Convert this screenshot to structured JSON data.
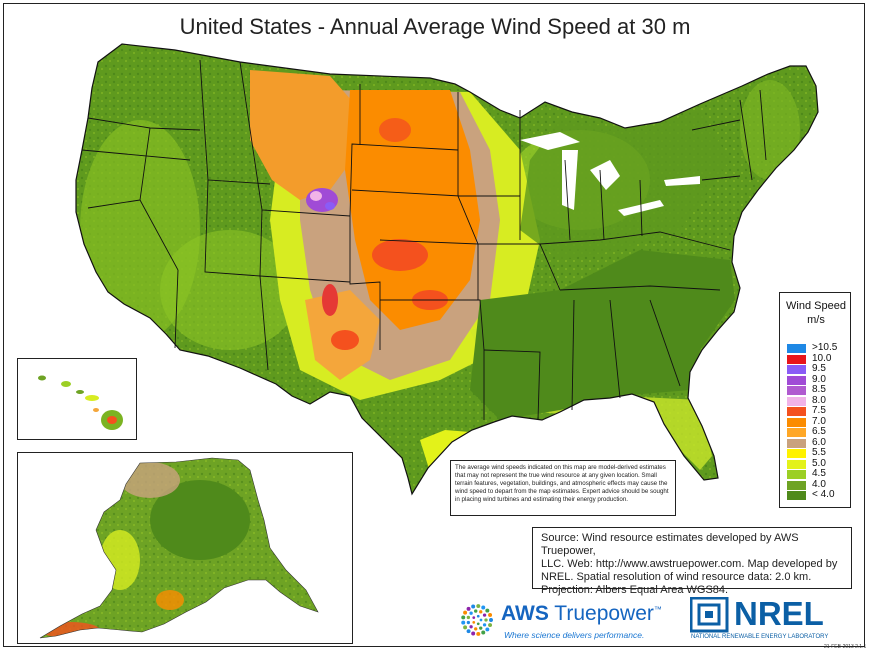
{
  "title": "United States - Annual Average Wind Speed at 30 m",
  "legend": {
    "title": "Wind Speed",
    "unit": "m/s",
    "items": [
      {
        "label": ">10.5",
        "color": "#1e88e5"
      },
      {
        "label": "10.0",
        "color": "#e8151b"
      },
      {
        "label": "9.5",
        "color": "#8a5cf6"
      },
      {
        "label": "9.0",
        "color": "#a04bd6"
      },
      {
        "label": "8.5",
        "color": "#b05ad0"
      },
      {
        "label": "8.0",
        "color": "#f1b3e8"
      },
      {
        "label": "7.5",
        "color": "#f4511e"
      },
      {
        "label": "7.0",
        "color": "#fb8c00"
      },
      {
        "label": "6.5",
        "color": "#ffa726"
      },
      {
        "label": "6.0",
        "color": "#c9a27e"
      },
      {
        "label": "5.5",
        "color": "#fff200"
      },
      {
        "label": "5.0",
        "color": "#e3f21a"
      },
      {
        "label": "4.5",
        "color": "#9ccf24"
      },
      {
        "label": "4.0",
        "color": "#6ea324"
      },
      {
        "label": "< 4.0",
        "color": "#4f8a1b"
      }
    ]
  },
  "disclaimer": "The average wind speeds indicated on this map are model-derived estimates that may not represent the true wind resource at any given location. Small terrain features, vegetation, buildings, and atmospheric effects may cause the wind speed to depart from the map estimates. Expert advice should be sought in placing wind turbines and estimating their energy production.",
  "source": {
    "line1": "Source: Wind resource estimates developed by AWS Truepower,",
    "line2": "LLC.  Web: http://www.awstruepower.com. Map developed by",
    "line3": "NREL.  Spatial resolution of wind resource data: 2.0 km.",
    "line4": "Projection: Albers Equal Area WGS84."
  },
  "logos": {
    "aws_bold": "AWS",
    "aws_rest": " Truepower",
    "aws_tm": "™",
    "aws_tagline": "Where science delivers performance.",
    "nrel": "NREL",
    "nrel_full": "NATIONAL RENEWABLE ENERGY LABORATORY"
  },
  "stamp": "21-FEB-2013 2.1.1"
}
